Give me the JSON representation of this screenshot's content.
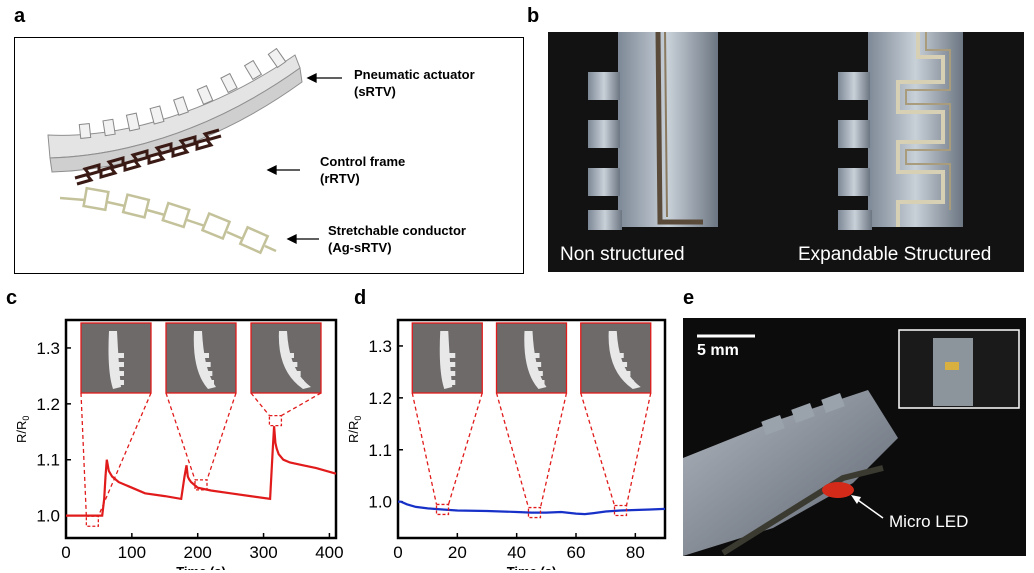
{
  "panels": {
    "a": {
      "letter": "a",
      "labels": [
        {
          "line1": "Pneumatic actuator",
          "line2": "(sRTV)"
        },
        {
          "line1": "Control frame",
          "line2": "(rRTV)"
        },
        {
          "line1": "Stretchable conductor",
          "line2": "(Ag-sRTV)"
        }
      ]
    },
    "b": {
      "letter": "b",
      "captions": [
        "Non structured",
        "Expandable Structured"
      ]
    },
    "c": {
      "letter": "c"
    },
    "d": {
      "letter": "d"
    },
    "e": {
      "letter": "e",
      "scale_bar": "5 mm",
      "annotation": "Micro LED"
    }
  },
  "colors": {
    "red_series": "#e11b1b",
    "blue_series": "#1730c8",
    "zoom_box": "#e11b1b",
    "photo_bg": "#0c0c0c"
  },
  "chart_data": [
    {
      "panel": "c",
      "type": "line",
      "xlabel": "Time (s)",
      "ylabel": "R/R0",
      "xlim": [
        0,
        410
      ],
      "ylim": [
        0.96,
        1.35
      ],
      "xticks": [
        0,
        100,
        200,
        300,
        400
      ],
      "yticks": [
        1.0,
        1.1,
        1.2,
        1.3
      ],
      "tick_labels_x": [
        "0",
        "100",
        "200",
        "300",
        "400"
      ],
      "tick_labels_y": [
        "1.0",
        "1.1",
        "1.2",
        "1.3"
      ],
      "series": [
        {
          "color": "#e11b1b",
          "x": [
            0,
            30,
            50,
            55,
            58,
            60,
            62,
            65,
            70,
            80,
            100,
            120,
            150,
            175,
            180,
            183,
            185,
            187,
            190,
            195,
            200,
            220,
            250,
            280,
            310,
            314,
            316,
            318,
            320,
            323,
            330,
            340,
            360,
            380,
            410
          ],
          "y": [
            1.0,
            1.0,
            1.0,
            1.0,
            1.03,
            1.07,
            1.1,
            1.08,
            1.07,
            1.06,
            1.05,
            1.04,
            1.035,
            1.03,
            1.07,
            1.09,
            1.07,
            1.065,
            1.06,
            1.055,
            1.05,
            1.045,
            1.04,
            1.035,
            1.03,
            1.12,
            1.16,
            1.13,
            1.12,
            1.11,
            1.1,
            1.095,
            1.09,
            1.085,
            1.075
          ]
        }
      ],
      "zooms": [
        {
          "x": 40,
          "y": 0.99
        },
        {
          "x": 205,
          "y": 1.055
        },
        {
          "x": 318,
          "y": 1.17
        }
      ]
    },
    {
      "panel": "d",
      "type": "line",
      "xlabel": "Time (s)",
      "ylabel": "R/R0",
      "xlim": [
        0,
        90
      ],
      "ylim": [
        0.93,
        1.35
      ],
      "xticks": [
        0,
        20,
        40,
        60,
        80
      ],
      "yticks": [
        1.0,
        1.1,
        1.2,
        1.3
      ],
      "tick_labels_x": [
        "0",
        "20",
        "40",
        "60",
        "80"
      ],
      "tick_labels_y": [
        "1.0",
        "1.1",
        "1.2",
        "1.3"
      ],
      "series": [
        {
          "color": "#1730c8",
          "x": [
            0,
            1,
            3,
            6,
            10,
            15,
            20,
            30,
            40,
            45,
            50,
            55,
            60,
            63,
            66,
            70,
            75,
            80,
            85,
            90
          ],
          "y": [
            1.0,
            1.0,
            0.995,
            0.99,
            0.987,
            0.985,
            0.983,
            0.982,
            0.98,
            0.979,
            0.979,
            0.98,
            0.977,
            0.976,
            0.978,
            0.981,
            0.983,
            0.984,
            0.985,
            0.986
          ]
        }
      ],
      "zooms": [
        {
          "x": 15,
          "y": 0.985
        },
        {
          "x": 46,
          "y": 0.979
        },
        {
          "x": 75,
          "y": 0.983
        }
      ]
    }
  ]
}
